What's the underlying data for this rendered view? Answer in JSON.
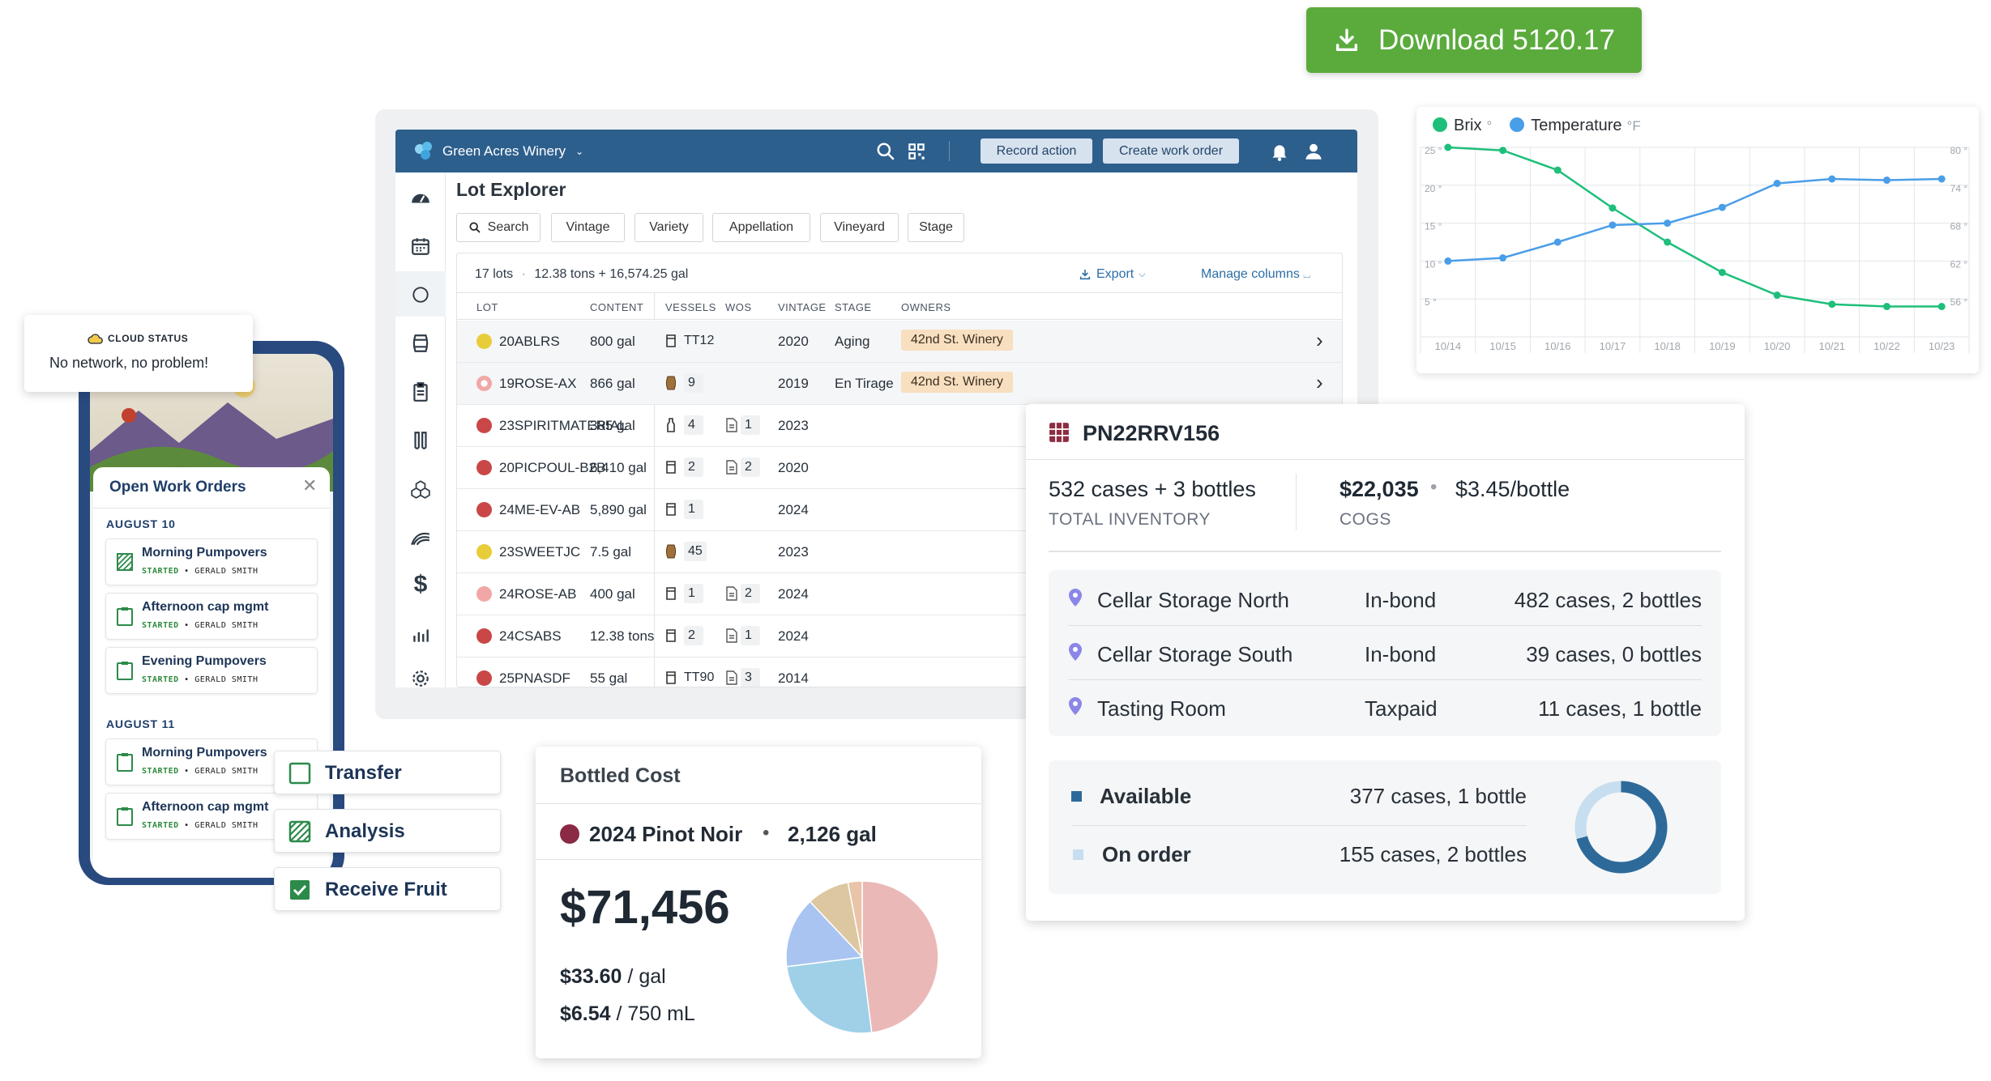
{
  "download": {
    "label": "Download 5120.17"
  },
  "topbar": {
    "winery": "Green Acres Winery",
    "record_action": "Record action",
    "create_work_order": "Create work order"
  },
  "lot_explorer": {
    "title": "Lot Explorer",
    "filters": [
      "Search",
      "Vintage",
      "Variety",
      "Appellation",
      "Vineyard",
      "Stage"
    ],
    "summary": "17 lots",
    "summary_amount": "12.38 tons + 16,574.25 gal",
    "export_label": "Export",
    "manage_columns": "Manage columns",
    "columns": [
      "LOT",
      "CONTENT",
      "VESSELS",
      "WOS",
      "VINTAGE",
      "STAGE",
      "OWNERS"
    ],
    "rows": [
      {
        "lot": "20ABLRS",
        "color": "#e8cd3a",
        "content": "800 gal",
        "vessel_icon": "tank",
        "vessel": "TT12",
        "wos": "",
        "vintage": "2020",
        "stage": "Aging",
        "owner": "42nd St. Winery"
      },
      {
        "lot": "19ROSE-AX",
        "color": "#f1a7a7",
        "content": "866 gal",
        "vessel_icon": "barrel",
        "vessel": "9",
        "wos": "",
        "vintage": "2019",
        "stage": "En Tirage",
        "owner": "42nd St. Winery"
      },
      {
        "lot": "23SPIRITMATERIAL",
        "color": "#c94747",
        "content": "385 gal",
        "vessel_icon": "bottle",
        "vessel": "4",
        "wos": "1",
        "vintage": "2023",
        "stage": "",
        "owner": ""
      },
      {
        "lot": "20PICPOUL-B2B",
        "color": "#c94747",
        "content": "6,410 gal",
        "vessel_icon": "tank",
        "vessel": "2",
        "wos": "2",
        "vintage": "2020",
        "stage": "",
        "owner": ""
      },
      {
        "lot": "24ME-EV-AB",
        "color": "#c94747",
        "content": "5,890 gal",
        "vessel_icon": "tank",
        "vessel": "1",
        "wos": "",
        "vintage": "2024",
        "stage": "",
        "owner": ""
      },
      {
        "lot": "23SWEETJC",
        "color": "#e8cd3a",
        "content": "7.5 gal",
        "vessel_icon": "barrel",
        "vessel": "45",
        "wos": "",
        "vintage": "2023",
        "stage": "",
        "owner": ""
      },
      {
        "lot": "24ROSE-AB",
        "color": "#f1a7a7",
        "content": "400 gal",
        "vessel_icon": "tank",
        "vessel": "1",
        "wos": "2",
        "vintage": "2024",
        "stage": "",
        "owner": ""
      },
      {
        "lot": "24CSABS",
        "color": "#c94747",
        "content": "12.38 tons",
        "vessel_icon": "tank",
        "vessel": "2",
        "wos": "1",
        "vintage": "2024",
        "stage": "",
        "owner": ""
      },
      {
        "lot": "25PNASDF",
        "color": "#c94747",
        "content": "55 gal",
        "vessel_icon": "tank",
        "vessel": "TT90",
        "wos": "3",
        "vintage": "2014",
        "stage": "",
        "owner": ""
      }
    ]
  },
  "brix_chart": {
    "legend": [
      {
        "name": "Brix",
        "unit": "°",
        "color": "#1ebf7a"
      },
      {
        "name": "Temperature",
        "unit": "°F",
        "color": "#4a9ee8"
      }
    ],
    "left_ticks": [
      "25 °",
      "20 °",
      "15 °",
      "10 °",
      "5 °"
    ],
    "right_ticks": [
      "80 °",
      "74 °",
      "68 °",
      "62 °",
      "56 °"
    ],
    "x_labels": [
      "10/14",
      "10/15",
      "10/16",
      "10/17",
      "10/18",
      "10/19",
      "10/20",
      "10/21",
      "10/22",
      "10/23"
    ]
  },
  "chart_data": {
    "type": "line",
    "x": [
      "10/14",
      "10/15",
      "10/16",
      "10/17",
      "10/18",
      "10/19",
      "10/20",
      "10/21",
      "10/22",
      "10/23"
    ],
    "series": [
      {
        "name": "Brix",
        "axis": "left",
        "unit": "°",
        "values": [
          25,
          24.6,
          22,
          17,
          12.5,
          8.5,
          5.5,
          4.3,
          4,
          4
        ]
      },
      {
        "name": "Temperature",
        "axis": "right",
        "unit": "°F",
        "values": [
          62,
          62.5,
          65,
          67.7,
          68,
          70.5,
          74.3,
          75,
          74.8,
          75
        ]
      }
    ],
    "ylim_left": [
      0,
      25
    ],
    "ylim_right": [
      50,
      80
    ],
    "grid": true,
    "legend": "top-left"
  },
  "lot_detail": {
    "lot": "PN22RRV156",
    "inventory": "532 cases + 3 bottles",
    "inventory_caption": "TOTAL INVENTORY",
    "cogs": "$22,035",
    "per_bottle": "$3.45/bottle",
    "cogs_caption": "COGS",
    "locations": [
      {
        "name": "Cellar Storage North",
        "tax": "In-bond",
        "qty": "482 cases, 2 bottles"
      },
      {
        "name": "Cellar Storage South",
        "tax": "In-bond",
        "qty": "39 cases, 0 bottles"
      },
      {
        "name": "Tasting Room",
        "tax": "Taxpaid",
        "qty": "11 cases, 1 bottle"
      }
    ],
    "availability": [
      {
        "label": "Available",
        "qty": "377 cases, 1 bottle",
        "color": "#2d6a9a",
        "cases": 377
      },
      {
        "label": "On order",
        "qty": "155 cases, 2 bottles",
        "color": "#c6def0",
        "cases": 155
      }
    ]
  },
  "bottled_cost": {
    "title": "Bottled Cost",
    "wine": "2024 Pinot Noir",
    "volume": "2,126 gal",
    "total": "$71,456",
    "per_gal_value": "$33.60",
    "per_gal_unit": "/ gal",
    "per_bottle_value": "$6.54",
    "per_bottle_unit": "/ 750 mL",
    "pie": [
      {
        "value": 48,
        "color": "#ebb8b8"
      },
      {
        "value": 25,
        "color": "#9fd0e8"
      },
      {
        "value": 15,
        "color": "#a9c4f1"
      },
      {
        "value": 9,
        "color": "#dcc7a0"
      },
      {
        "value": 3,
        "color": "#e9c4a8"
      }
    ]
  },
  "cloud_status": {
    "label": "CLOUD STATUS",
    "message": "No network, no problem!"
  },
  "work_orders": {
    "title": "Open Work Orders",
    "groups": [
      {
        "date": "AUGUST 10",
        "items": [
          {
            "name": "Morning Pumpovers",
            "status": "STARTED",
            "person": "GERALD SMITH",
            "icon": "analysis"
          },
          {
            "name": "Afternoon cap mgmt",
            "status": "STARTED",
            "person": "GERALD SMITH",
            "icon": "clipboard"
          },
          {
            "name": "Evening Pumpovers",
            "status": "STARTED",
            "person": "GERALD SMITH",
            "icon": "clipboard"
          }
        ]
      },
      {
        "date": "AUGUST 11",
        "items": [
          {
            "name": "Morning Pumpovers",
            "status": "STARTED",
            "person": "GERALD SMITH",
            "icon": "clipboard"
          },
          {
            "name": "Afternoon cap mgmt",
            "status": "STARTED",
            "person": "GERALD SMITH",
            "icon": "clipboard"
          }
        ]
      }
    ]
  },
  "task_chips": [
    {
      "label": "Transfer",
      "icon": "empty-checkbox"
    },
    {
      "label": "Analysis",
      "icon": "analysis"
    },
    {
      "label": "Receive Fruit",
      "icon": "checked-checkbox"
    }
  ]
}
